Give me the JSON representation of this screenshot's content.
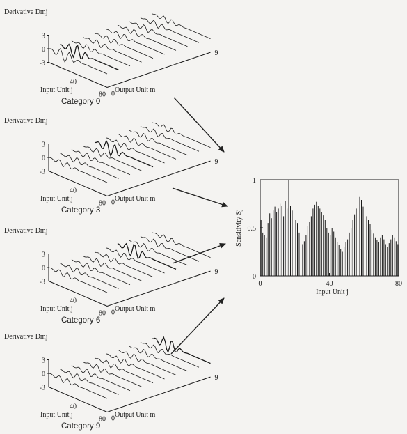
{
  "colors": {
    "ink": "#1a1a1a",
    "background": "#f4f3f1",
    "arrow": "#222222"
  },
  "panels": [
    {
      "category_label": "Category 0",
      "zlabel": "Derivative Dmj",
      "xlabel": "Input Unit j",
      "ylabel": "Output Unit m",
      "z_ticks": [
        "3",
        "0",
        "-3"
      ],
      "x_ticks": [
        "40",
        "80"
      ],
      "y_ticks": [
        "0",
        "9"
      ],
      "highlight_output": 1
    },
    {
      "category_label": "Category 3",
      "zlabel": "Derivative Dmj",
      "xlabel": "Input Unit j",
      "ylabel": "Output Unit m",
      "z_ticks": [
        "3",
        "0",
        "-3"
      ],
      "x_ticks": [
        "40",
        "80"
      ],
      "y_ticks": [
        "0",
        "9"
      ],
      "highlight_output": 4
    },
    {
      "category_label": "Category 6",
      "zlabel": "Derivative Dmj",
      "xlabel": "Input Unit j",
      "ylabel": "Output Unit m",
      "z_ticks": [
        "3",
        "0",
        "-3"
      ],
      "x_ticks": [
        "40",
        "80"
      ],
      "y_ticks": [
        "0",
        "9"
      ],
      "highlight_output": 6
    },
    {
      "category_label": "Category 9",
      "zlabel": "Derivative Dmj",
      "xlabel": "Input Unit j",
      "ylabel": "Output Unit m",
      "z_ticks": [
        "3",
        "0",
        "-3"
      ],
      "x_ticks": [
        "40",
        "80"
      ],
      "y_ticks": [
        "0",
        "9"
      ],
      "highlight_output": 9
    }
  ],
  "chart_data": {
    "type": "bar",
    "title": "",
    "xlabel": "Input Unit j",
    "ylabel": "Sensitivity Sj",
    "xlim": [
      0,
      80
    ],
    "ylim": [
      0,
      1
    ],
    "x_ticks": [
      0,
      40,
      80
    ],
    "y_ticks": [
      0,
      0.5,
      1
    ],
    "x": [
      0,
      1,
      2,
      3,
      4,
      5,
      6,
      7,
      8,
      9,
      10,
      11,
      12,
      13,
      14,
      15,
      16,
      17,
      18,
      19,
      20,
      21,
      22,
      23,
      24,
      25,
      26,
      27,
      28,
      29,
      30,
      31,
      32,
      33,
      34,
      35,
      36,
      37,
      38,
      39,
      40,
      41,
      42,
      43,
      44,
      45,
      46,
      47,
      48,
      49,
      50,
      51,
      52,
      53,
      54,
      55,
      56,
      57,
      58,
      59,
      60,
      61,
      62,
      63,
      64,
      65,
      66,
      67,
      68,
      69,
      70,
      71,
      72,
      73,
      74,
      75,
      76,
      77,
      78,
      79
    ],
    "values": [
      0.58,
      0.45,
      0.42,
      0.4,
      0.55,
      0.65,
      0.6,
      0.68,
      0.72,
      0.66,
      0.7,
      0.75,
      0.73,
      0.62,
      0.78,
      0.7,
      1.0,
      0.73,
      0.68,
      0.62,
      0.58,
      0.55,
      0.45,
      0.4,
      0.33,
      0.36,
      0.42,
      0.52,
      0.56,
      0.62,
      0.7,
      0.74,
      0.77,
      0.73,
      0.7,
      0.66,
      0.63,
      0.58,
      0.5,
      0.45,
      0.42,
      0.5,
      0.46,
      0.4,
      0.35,
      0.32,
      0.28,
      0.25,
      0.3,
      0.35,
      0.38,
      0.45,
      0.5,
      0.58,
      0.64,
      0.7,
      0.78,
      0.82,
      0.79,
      0.72,
      0.68,
      0.62,
      0.58,
      0.54,
      0.48,
      0.44,
      0.4,
      0.37,
      0.35,
      0.4,
      0.42,
      0.38,
      0.33,
      0.3,
      0.34,
      0.38,
      0.42,
      0.4,
      0.36,
      0.33
    ],
    "grid": false
  }
}
